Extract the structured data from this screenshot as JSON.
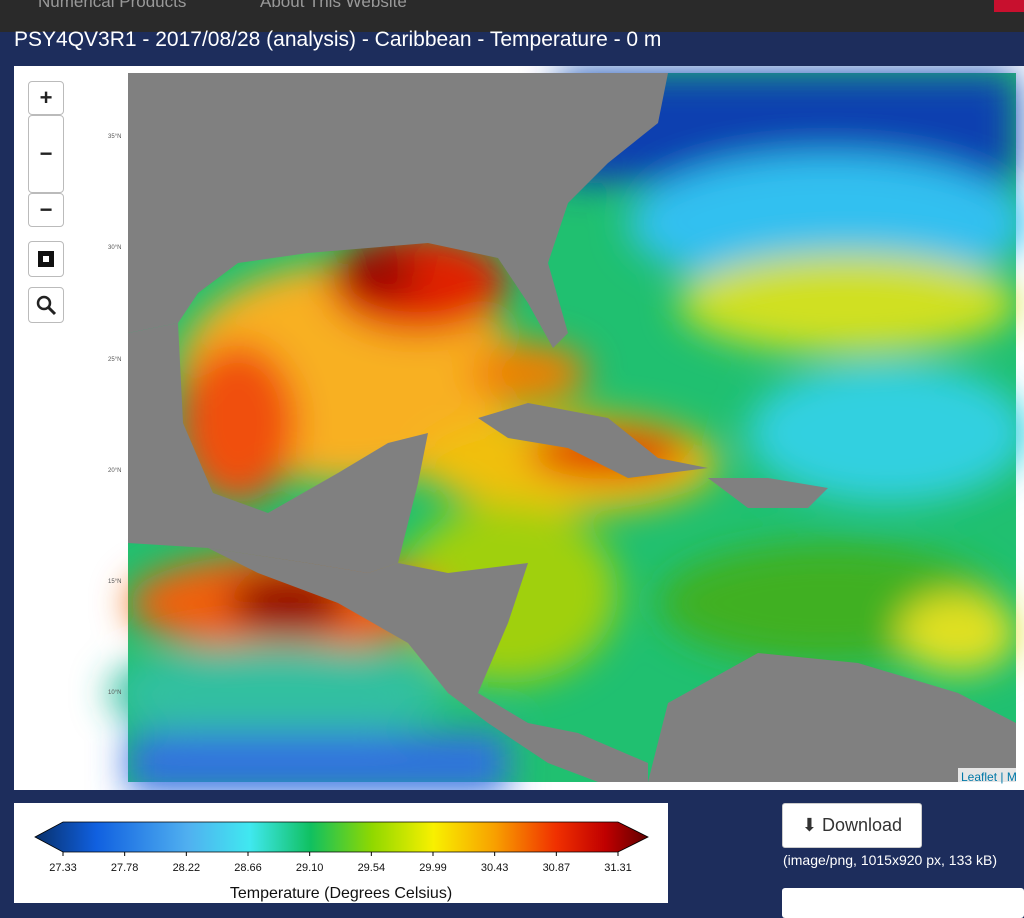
{
  "nav": {
    "items": [
      "Numerical Products",
      "About This Website"
    ]
  },
  "title": "PSY4QV3R1 - 2017/08/28 (analysis) - Caribbean - Temperature - 0 m",
  "map": {
    "controls": [
      "+",
      "−",
      "−"
    ],
    "lat_labels": [
      "35°N",
      "30°N",
      "25°N",
      "20°N",
      "15°N",
      "10°N"
    ],
    "attribution": "Leaflet | M"
  },
  "colorbar": {
    "ticks": [
      "27.33",
      "27.78",
      "28.22",
      "28.66",
      "29.10",
      "29.54",
      "29.99",
      "30.43",
      "30.87",
      "31.31"
    ],
    "label": "Temperature (Degrees Celsius)"
  },
  "download": {
    "button": "Download",
    "info": "(image/png, 1015x920 px, 133 kB)"
  }
}
